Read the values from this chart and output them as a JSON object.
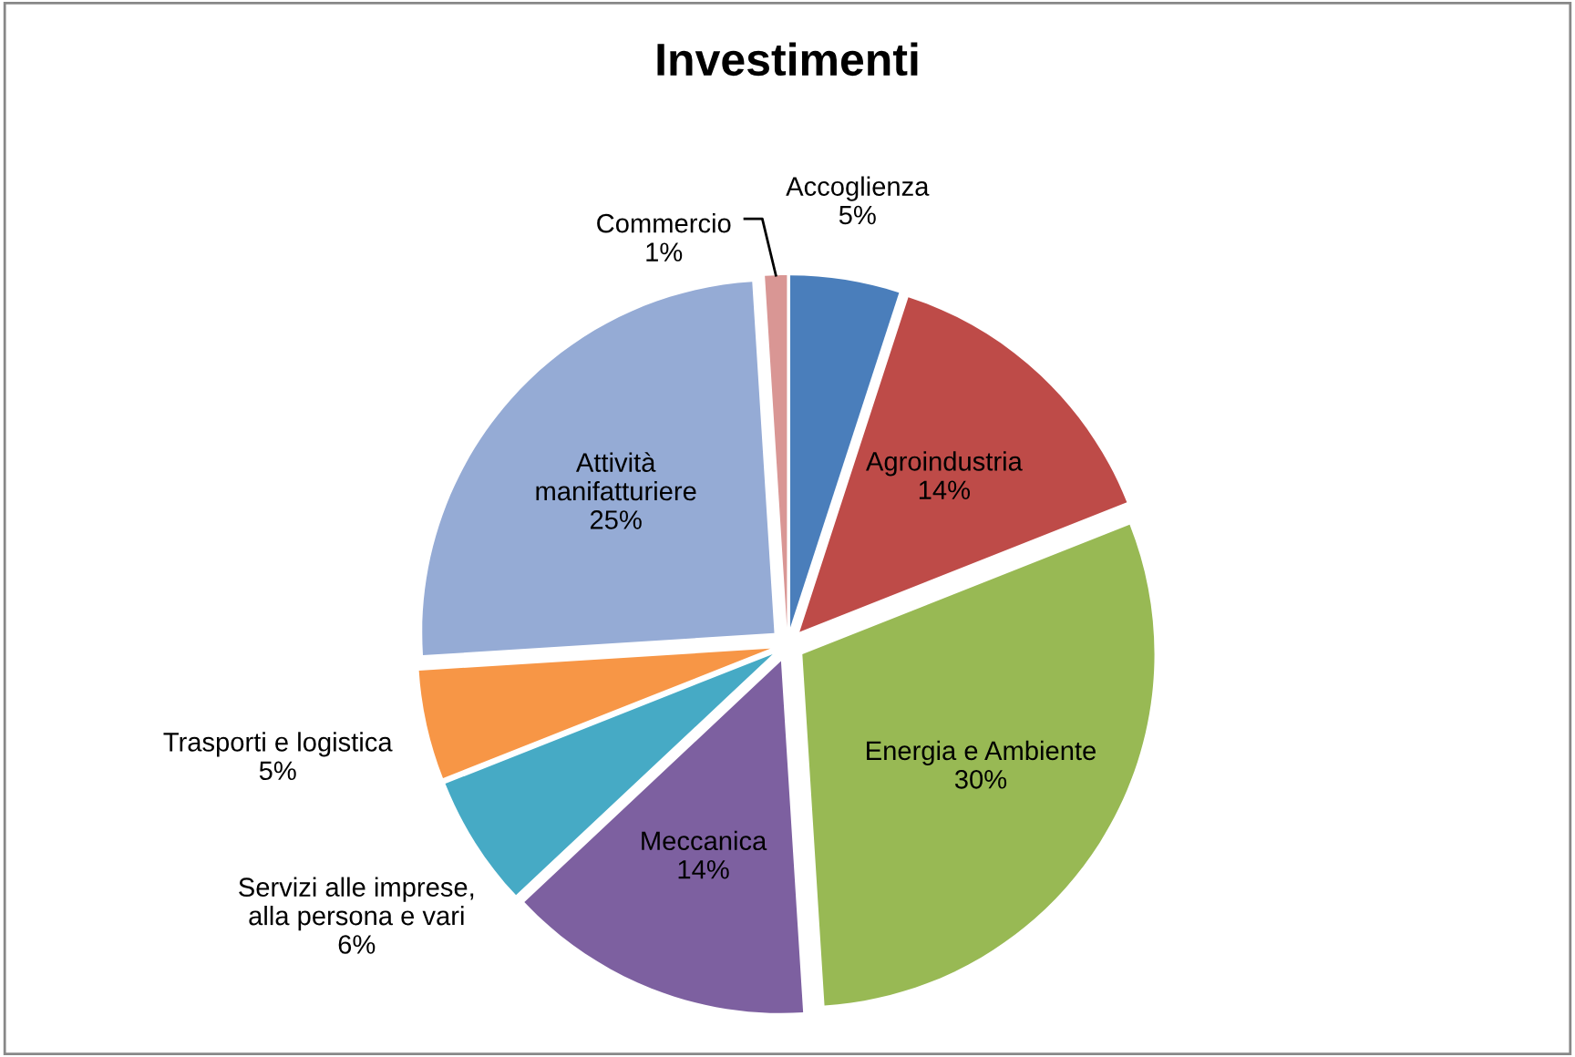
{
  "chart_data": {
    "type": "pie",
    "title": "Investimenti",
    "categories": [
      "Accoglienza",
      "Agroindustria",
      "Energia e Ambiente",
      "Meccanica",
      "Servizi alle imprese,\nalla persona e vari",
      "Trasporti e logistica",
      "Attività\nmanifatturiere",
      "Commercio"
    ],
    "values": [
      5,
      14,
      30,
      14,
      6,
      5,
      25,
      1
    ],
    "value_labels": [
      "5%",
      "14%",
      "30%",
      "14%",
      "6%",
      "5%",
      "25%",
      "1%"
    ],
    "colors": [
      "#4a7ebb",
      "#be4b48",
      "#98b954",
      "#7d60a0",
      "#46aac5",
      "#f79646",
      "#95abd5",
      "#d99694"
    ],
    "legend": false
  }
}
